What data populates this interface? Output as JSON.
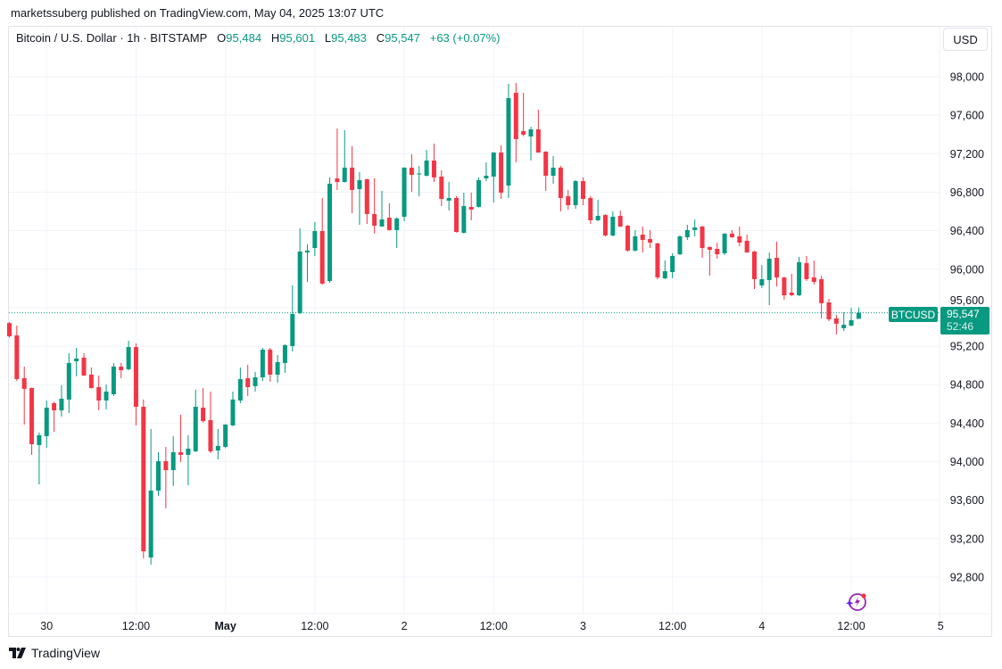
{
  "publisher_line": "marketssuberg published on TradingView.com, May 04, 2025 13:07 UTC",
  "legend": {
    "symbol": "Bitcoin / U.S. Dollar · 1h · BITSTAMP",
    "o_label": "O",
    "o_value": "95,484",
    "h_label": "H",
    "h_value": "95,601",
    "l_label": "L",
    "l_value": "95,483",
    "c_label": "C",
    "c_value": "95,547",
    "change": "+63 (+0.07%)"
  },
  "currency_button": "USD",
  "last_price": {
    "symbol": "BTCUSD",
    "price": "95,547",
    "countdown": "52:46"
  },
  "footer": {
    "brand": "TradingView"
  },
  "icons": {
    "logo": "tradingview-logo-icon",
    "bolt": "lightning-bolt-icon"
  },
  "colors": {
    "up": "#089981",
    "down": "#F23645",
    "grid": "#f0f3fa",
    "text": "#131722",
    "accent_bolt": "#9c27b0"
  },
  "chart_data": {
    "type": "candlestick",
    "interval": "1h",
    "symbol": "BTCUSD",
    "grid": true,
    "ylim": [
      92500,
      98300
    ],
    "y_ticks": [
      {
        "value": 98000,
        "label": "98,000"
      },
      {
        "value": 97600,
        "label": "97,600"
      },
      {
        "value": 97200,
        "label": "97,200"
      },
      {
        "value": 96800,
        "label": "96,800"
      },
      {
        "value": 96400,
        "label": "96,400"
      },
      {
        "value": 96000,
        "label": "96,000"
      },
      {
        "value": 95600,
        "label": "95,600"
      },
      {
        "value": 95200,
        "label": "95,200"
      },
      {
        "value": 94800,
        "label": "94,800"
      },
      {
        "value": 94400,
        "label": "94,400"
      },
      {
        "value": 94000,
        "label": "94,000"
      },
      {
        "value": 93600,
        "label": "93,600"
      },
      {
        "value": 93200,
        "label": "93,200"
      },
      {
        "value": 92800,
        "label": "92,800"
      }
    ],
    "x_ticks": [
      {
        "time": "2025-04-30 00:00",
        "label": "30",
        "bold": false
      },
      {
        "time": "2025-04-30 12:00",
        "label": "12:00",
        "bold": false
      },
      {
        "time": "2025-05-01 00:00",
        "label": "May",
        "bold": true
      },
      {
        "time": "2025-05-01 12:00",
        "label": "12:00",
        "bold": false
      },
      {
        "time": "2025-05-02 00:00",
        "label": "2",
        "bold": false
      },
      {
        "time": "2025-05-02 12:00",
        "label": "12:00",
        "bold": false
      },
      {
        "time": "2025-05-03 00:00",
        "label": "3",
        "bold": false
      },
      {
        "time": "2025-05-03 12:00",
        "label": "12:00",
        "bold": false
      },
      {
        "time": "2025-05-04 00:00",
        "label": "4",
        "bold": false
      },
      {
        "time": "2025-05-04 12:00",
        "label": "12:00",
        "bold": false
      },
      {
        "time": "2025-05-05 00:00",
        "label": "5",
        "bold": false
      }
    ],
    "last_close": 95547,
    "candles_fields": [
      "time",
      "open",
      "high",
      "low",
      "close"
    ],
    "candles": [
      [
        "2025-04-29 19:00",
        95440,
        95450,
        95290,
        95303
      ],
      [
        "2025-04-29 20:00",
        95312,
        95414,
        94839,
        94858
      ],
      [
        "2025-04-29 21:00",
        94867,
        94988,
        94385,
        94756
      ],
      [
        "2025-04-29 22:00",
        94765,
        94770,
        94070,
        94181
      ],
      [
        "2025-04-29 23:00",
        94172,
        94302,
        93764,
        94274
      ],
      [
        "2025-04-30 00:00",
        94265,
        94635,
        94144,
        94561
      ],
      [
        "2025-04-30 01:00",
        94608,
        94620,
        94311,
        94533
      ],
      [
        "2025-04-30 02:00",
        94533,
        94793,
        94468,
        94654
      ],
      [
        "2025-04-30 03:00",
        94645,
        95127,
        94506,
        95025
      ],
      [
        "2025-04-30 04:00",
        95043,
        95182,
        94886,
        95071
      ],
      [
        "2025-04-30 05:00",
        95080,
        95127,
        94890,
        94895
      ],
      [
        "2025-04-30 06:00",
        94904,
        94978,
        94760,
        94765
      ],
      [
        "2025-04-30 07:00",
        94774,
        94895,
        94533,
        94635
      ],
      [
        "2025-04-30 08:00",
        94635,
        94802,
        94543,
        94728
      ],
      [
        "2025-04-30 09:00",
        94700,
        95025,
        94682,
        94988
      ],
      [
        "2025-04-30 10:00",
        94988,
        95025,
        94867,
        94950
      ],
      [
        "2025-04-30 11:00",
        94960,
        95256,
        94950,
        95191
      ],
      [
        "2025-04-30 12:00",
        95191,
        95228,
        94376,
        94570
      ],
      [
        "2025-04-30 13:00",
        94570,
        94645,
        92995,
        93069
      ],
      [
        "2025-04-30 14:00",
        93004,
        94339,
        92930,
        93699
      ],
      [
        "2025-04-30 15:00",
        93699,
        94098,
        93644,
        94005
      ],
      [
        "2025-04-30 16:00",
        94005,
        94153,
        93514,
        93912
      ],
      [
        "2025-04-30 17:00",
        93912,
        94265,
        93746,
        94098
      ],
      [
        "2025-04-30 18:00",
        94098,
        94487,
        93996,
        94070
      ],
      [
        "2025-04-30 19:00",
        94070,
        94274,
        93755,
        94135
      ],
      [
        "2025-04-30 20:00",
        94107,
        94747,
        94100,
        94570
      ],
      [
        "2025-04-30 21:00",
        94561,
        94765,
        94404,
        94422
      ],
      [
        "2025-04-30 22:00",
        94431,
        94728,
        94089,
        94107
      ],
      [
        "2025-04-30 23:00",
        94116,
        94339,
        94024,
        94163
      ],
      [
        "2025-05-01 00:00",
        94153,
        94390,
        94140,
        94385
      ],
      [
        "2025-05-01 01:00",
        94376,
        94728,
        94370,
        94645
      ],
      [
        "2025-05-01 02:00",
        94635,
        94978,
        94608,
        94858
      ],
      [
        "2025-05-01 03:00",
        94867,
        95006,
        94682,
        94774
      ],
      [
        "2025-05-01 04:00",
        94784,
        94932,
        94728,
        94876
      ],
      [
        "2025-05-01 05:00",
        94876,
        95182,
        94839,
        95164
      ],
      [
        "2025-05-01 06:00",
        95164,
        95182,
        94830,
        94904
      ],
      [
        "2025-05-01 07:00",
        94904,
        95108,
        94820,
        95034
      ],
      [
        "2025-05-01 08:00",
        95025,
        95220,
        94923,
        95210
      ],
      [
        "2025-05-01 09:00",
        95201,
        95831,
        95145,
        95534
      ],
      [
        "2025-05-01 10:00",
        95543,
        96424,
        95534,
        96183
      ],
      [
        "2025-05-01 11:00",
        96174,
        96257,
        95868,
        96193
      ],
      [
        "2025-05-01 12:00",
        96220,
        96489,
        96137,
        96396
      ],
      [
        "2025-05-01 13:00",
        96396,
        96739,
        95840,
        95850
      ],
      [
        "2025-05-01 14:00",
        95877,
        96953,
        95860,
        96888
      ],
      [
        "2025-05-01 15:00",
        96943,
        97462,
        96823,
        96906
      ],
      [
        "2025-05-01 16:00",
        96906,
        97444,
        96900,
        97055
      ],
      [
        "2025-05-01 17:00",
        97055,
        97277,
        96582,
        96823
      ],
      [
        "2025-05-01 18:00",
        96832,
        97008,
        96461,
        96925
      ],
      [
        "2025-05-01 19:00",
        96934,
        96940,
        96470,
        96573
      ],
      [
        "2025-05-01 20:00",
        96573,
        96943,
        96369,
        96452
      ],
      [
        "2025-05-01 21:00",
        96443,
        96814,
        96440,
        96517
      ],
      [
        "2025-05-01 22:00",
        96535,
        96684,
        96400,
        96406
      ],
      [
        "2025-05-01 23:00",
        96406,
        96540,
        96220,
        96526
      ],
      [
        "2025-05-02 00:00",
        96545,
        97060,
        96498,
        97055
      ],
      [
        "2025-05-02 01:00",
        97055,
        97194,
        96804,
        96980
      ],
      [
        "2025-05-02 02:00",
        96985,
        97073,
        96758,
        96995
      ],
      [
        "2025-05-02 03:00",
        96971,
        97240,
        96965,
        97129
      ],
      [
        "2025-05-02 04:00",
        97129,
        97305,
        96906,
        96953
      ],
      [
        "2025-05-02 05:00",
        96962,
        97027,
        96656,
        96730
      ],
      [
        "2025-05-02 06:00",
        96712,
        96906,
        96610,
        96740
      ],
      [
        "2025-05-02 07:00",
        96740,
        96760,
        96380,
        96387
      ],
      [
        "2025-05-02 08:00",
        96378,
        96795,
        96370,
        96656
      ],
      [
        "2025-05-02 09:00",
        96647,
        96795,
        96508,
        96619
      ],
      [
        "2025-05-02 10:00",
        96647,
        96953,
        96640,
        96925
      ],
      [
        "2025-05-02 11:00",
        96943,
        97110,
        96915,
        96971
      ],
      [
        "2025-05-02 12:00",
        96962,
        97215,
        96693,
        97212
      ],
      [
        "2025-05-02 13:00",
        97212,
        97286,
        96730,
        96795
      ],
      [
        "2025-05-02 14:00",
        96869,
        97926,
        96739,
        97778
      ],
      [
        "2025-05-02 15:00",
        97833,
        97935,
        97110,
        97351
      ],
      [
        "2025-05-02 16:00",
        97435,
        97833,
        97380,
        97398
      ],
      [
        "2025-05-02 17:00",
        97379,
        97481,
        97129,
        97453
      ],
      [
        "2025-05-02 18:00",
        97453,
        97657,
        97210,
        97212
      ],
      [
        "2025-05-02 19:00",
        97221,
        97225,
        96814,
        96971
      ],
      [
        "2025-05-02 20:00",
        96971,
        97175,
        96888,
        97055
      ],
      [
        "2025-05-02 21:00",
        97055,
        97073,
        96600,
        96739
      ],
      [
        "2025-05-02 22:00",
        96758,
        96823,
        96619,
        96665
      ],
      [
        "2025-05-02 23:00",
        96665,
        96925,
        96628,
        96915
      ],
      [
        "2025-05-03 00:00",
        96915,
        96953,
        96665,
        96730
      ],
      [
        "2025-05-03 01:00",
        96739,
        96760,
        96470,
        96508
      ],
      [
        "2025-05-03 02:00",
        96508,
        96721,
        96500,
        96554
      ],
      [
        "2025-05-03 03:00",
        96563,
        96570,
        96341,
        96350
      ],
      [
        "2025-05-03 04:00",
        96350,
        96600,
        96341,
        96545
      ],
      [
        "2025-05-03 05:00",
        96554,
        96610,
        96440,
        96443
      ],
      [
        "2025-05-03 06:00",
        96452,
        96460,
        96183,
        96193
      ],
      [
        "2025-05-03 07:00",
        96193,
        96406,
        96183,
        96341
      ],
      [
        "2025-05-03 08:00",
        96359,
        96443,
        96174,
        96304
      ],
      [
        "2025-05-03 09:00",
        96313,
        96406,
        96220,
        96276
      ],
      [
        "2025-05-03 10:00",
        96267,
        96276,
        95896,
        95914
      ],
      [
        "2025-05-03 11:00",
        95905,
        96091,
        95896,
        95979
      ],
      [
        "2025-05-03 12:00",
        95970,
        96165,
        95905,
        96137
      ],
      [
        "2025-05-03 13:00",
        96155,
        96350,
        96146,
        96341
      ],
      [
        "2025-05-03 14:00",
        96332,
        96461,
        96304,
        96406
      ],
      [
        "2025-05-03 15:00",
        96406,
        96517,
        96341,
        96434
      ],
      [
        "2025-05-03 16:00",
        96443,
        96450,
        96118,
        96220
      ],
      [
        "2025-05-03 17:00",
        96230,
        96235,
        95933,
        96202
      ],
      [
        "2025-05-03 18:00",
        96211,
        96276,
        96109,
        96155
      ],
      [
        "2025-05-03 19:00",
        96165,
        96375,
        96146,
        96369
      ],
      [
        "2025-05-03 20:00",
        96369,
        96406,
        96325,
        96332
      ],
      [
        "2025-05-03 21:00",
        96341,
        96443,
        96239,
        96276
      ],
      [
        "2025-05-03 22:00",
        96295,
        96359,
        96170,
        96174
      ],
      [
        "2025-05-03 23:00",
        96183,
        96190,
        95794,
        95896
      ],
      [
        "2025-05-04 00:00",
        95831,
        96044,
        95803,
        95896
      ],
      [
        "2025-05-04 01:00",
        95887,
        96174,
        95627,
        96109
      ],
      [
        "2025-05-04 02:00",
        96118,
        96285,
        95822,
        95914
      ],
      [
        "2025-05-04 03:00",
        95914,
        95920,
        95683,
        95729
      ],
      [
        "2025-05-04 04:00",
        95757,
        95952,
        95720,
        95729
      ],
      [
        "2025-05-04 05:00",
        95729,
        96128,
        95720,
        96072
      ],
      [
        "2025-05-04 06:00",
        96063,
        96137,
        95877,
        95896
      ],
      [
        "2025-05-04 07:00",
        95914,
        96091,
        95840,
        95868
      ],
      [
        "2025-05-04 08:00",
        95896,
        95933,
        95488,
        95646
      ],
      [
        "2025-05-04 09:00",
        95655,
        95692,
        95460,
        95479
      ],
      [
        "2025-05-04 10:00",
        95488,
        95525,
        95321,
        95433
      ],
      [
        "2025-05-04 11:00",
        95386,
        95553,
        95358,
        95423
      ],
      [
        "2025-05-04 12:00",
        95414,
        95599,
        95405,
        95470
      ],
      [
        "2025-05-04 13:00",
        95484,
        95601,
        95483,
        95547
      ]
    ]
  }
}
